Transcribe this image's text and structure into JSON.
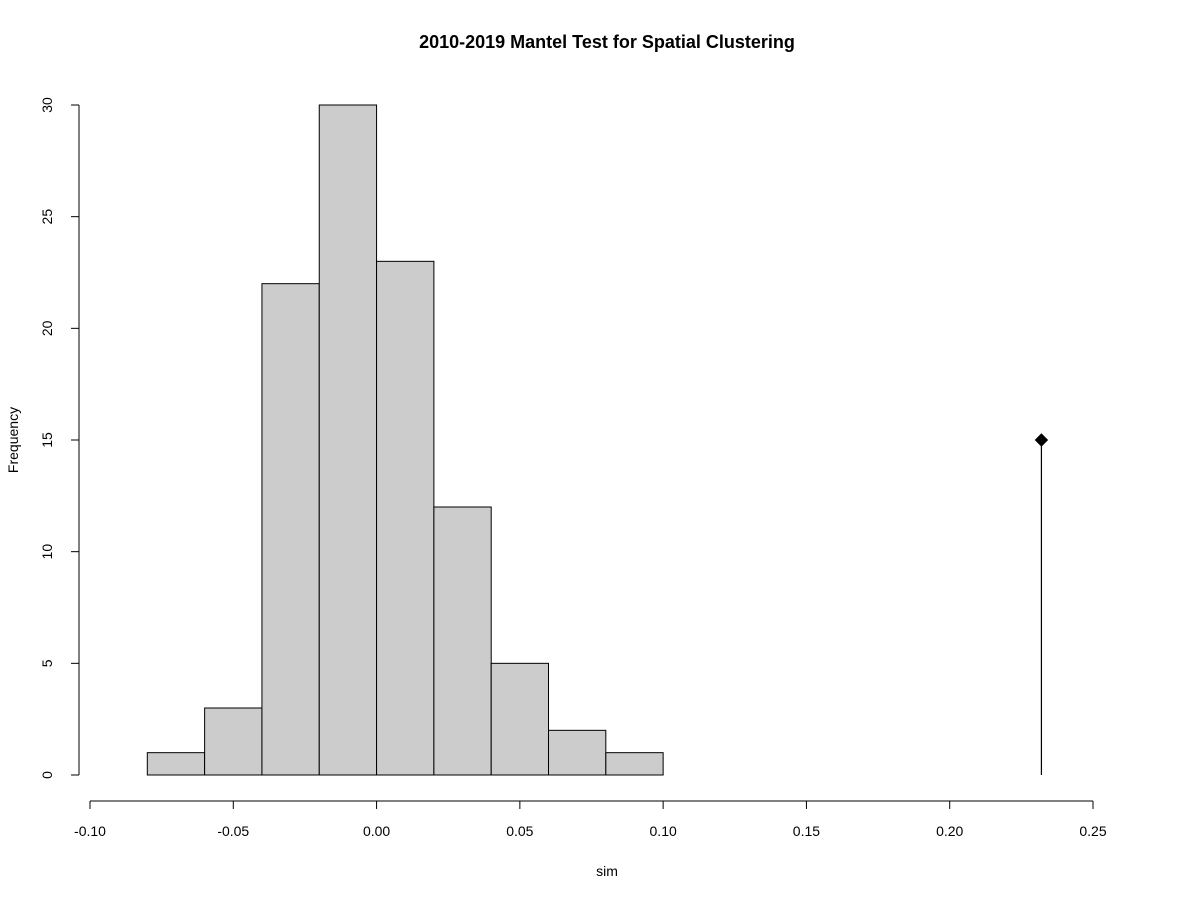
{
  "chart_data": {
    "type": "bar",
    "subtype": "histogram",
    "title": "2010-2019 Mantel Test for Spatial Clustering",
    "xlabel": "sim",
    "ylabel": "Frequency",
    "xlim": [
      -0.1,
      0.25
    ],
    "ylim": [
      0,
      30
    ],
    "x_ticks": [
      -0.1,
      -0.05,
      0.0,
      0.05,
      0.1,
      0.15,
      0.2,
      0.25
    ],
    "x_tick_labels": [
      "-0.10",
      "-0.05",
      "0.00",
      "0.05",
      "0.10",
      "0.15",
      "0.20",
      "0.25"
    ],
    "y_ticks": [
      0,
      5,
      10,
      15,
      20,
      25,
      30
    ],
    "y_tick_labels": [
      "0",
      "5",
      "10",
      "15",
      "20",
      "25",
      "30"
    ],
    "bins": [
      {
        "start": -0.08,
        "end": -0.06,
        "count": 1
      },
      {
        "start": -0.06,
        "end": -0.04,
        "count": 3
      },
      {
        "start": -0.04,
        "end": -0.02,
        "count": 22
      },
      {
        "start": -0.02,
        "end": 0.0,
        "count": 30
      },
      {
        "start": 0.0,
        "end": 0.02,
        "count": 23
      },
      {
        "start": 0.02,
        "end": 0.04,
        "count": 12
      },
      {
        "start": 0.04,
        "end": 0.06,
        "count": 5
      },
      {
        "start": 0.06,
        "end": 0.08,
        "count": 2
      },
      {
        "start": 0.08,
        "end": 0.1,
        "count": 1
      }
    ],
    "observed": {
      "x": 0.232,
      "y": 15
    },
    "bar_color": "#cccccc",
    "grid": false,
    "legend": "none"
  }
}
